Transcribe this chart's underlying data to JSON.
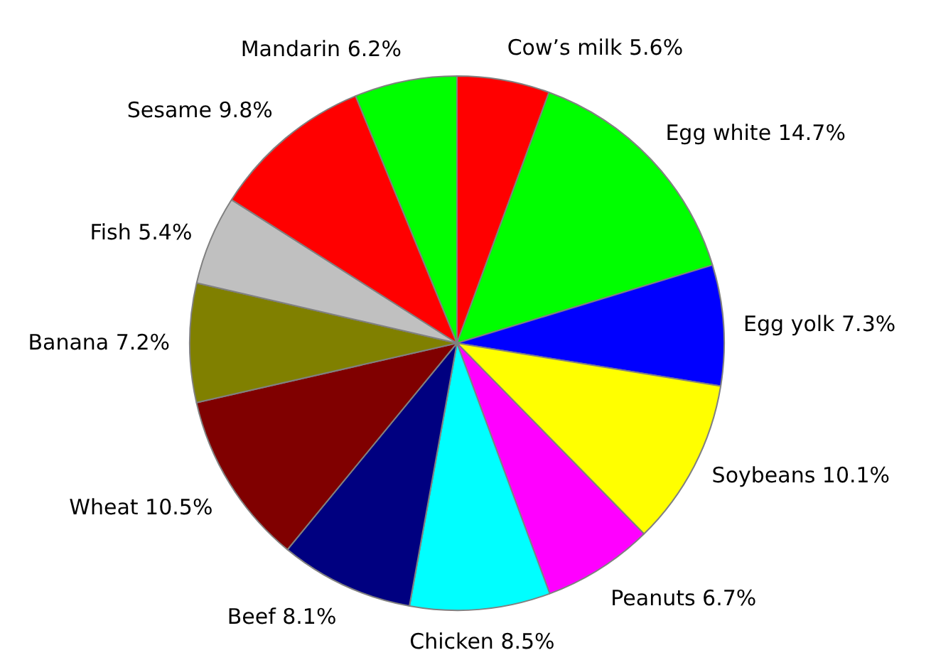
{
  "chart_data": {
    "type": "pie",
    "categories": [
      "Cow’s milk",
      "Egg white",
      "Egg yolk",
      "Soybeans",
      "Peanuts",
      "Chicken",
      "Beef",
      "Wheat",
      "Banana",
      "Fish",
      "Sesame",
      "Mandarin"
    ],
    "values": [
      5.6,
      14.7,
      7.3,
      10.1,
      6.7,
      8.5,
      8.1,
      10.5,
      7.2,
      5.4,
      9.8,
      6.2
    ],
    "value_labels": [
      "5.6%",
      "14.7%",
      "7.3%",
      "10.1%",
      "6.7%",
      "8.5%",
      "8.1%",
      "10.5%",
      "7.2%",
      "5.4%",
      "9.8%",
      "6.2%"
    ],
    "colors": [
      "#ff0000",
      "#00ff00",
      "#0000ff",
      "#ffff00",
      "#ff00ff",
      "#00ffff",
      "#000080",
      "#800000",
      "#808000",
      "#c0c0c0",
      "#ff0000",
      "#00ff00"
    ]
  }
}
